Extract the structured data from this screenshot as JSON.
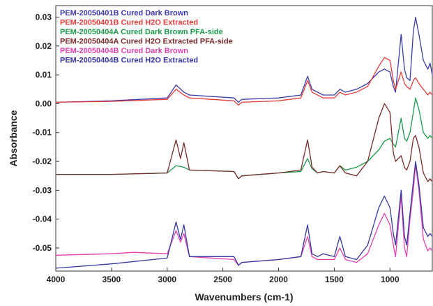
{
  "chart_data": {
    "type": "line",
    "title": "",
    "xlabel": "Wavenumbers (cm-1)",
    "ylabel": "Absorbance",
    "xlim": [
      4000,
      620
    ],
    "ylim": [
      -0.058,
      0.034
    ],
    "x_reversed": true,
    "x_ticks": [
      4000,
      3500,
      3000,
      2500,
      2000,
      1500,
      1000
    ],
    "x_tick_labels": [
      "4000",
      "3500",
      "3000",
      "2500",
      "2000",
      "1500",
      "1000"
    ],
    "y_ticks": [
      0.03,
      0.02,
      0.01,
      0.0,
      -0.01,
      -0.02,
      -0.03,
      -0.04,
      -0.05
    ],
    "y_tick_labels": [
      "0.03",
      "0.02",
      "0.01",
      "0.00",
      "-0.01",
      "-0.02",
      "-0.03",
      "-0.04",
      "-0.05"
    ],
    "grid": false,
    "legend_position": "top-left",
    "series": [
      {
        "name": "PEM-20050401B Cured Dark Brown",
        "color": "#3a3aa8",
        "points": [
          [
            4000,
            0.0005
          ],
          [
            3500,
            0.001
          ],
          [
            3000,
            0.002
          ],
          [
            2920,
            0.0065
          ],
          [
            2850,
            0.004
          ],
          [
            2800,
            0.003
          ],
          [
            2400,
            0.002
          ],
          [
            2360,
            0.0005
          ],
          [
            2330,
            0.0015
          ],
          [
            2000,
            0.002
          ],
          [
            1800,
            0.003
          ],
          [
            1740,
            0.0095
          ],
          [
            1700,
            0.005
          ],
          [
            1600,
            0.003
          ],
          [
            1500,
            0.003
          ],
          [
            1450,
            0.005
          ],
          [
            1400,
            0.004
          ],
          [
            1300,
            0.005
          ],
          [
            1200,
            0.007
          ],
          [
            1100,
            0.011
          ],
          [
            1050,
            0.012
          ],
          [
            1000,
            0.011
          ],
          [
            970,
            0.006
          ],
          [
            950,
            0.004
          ],
          [
            900,
            0.024
          ],
          [
            870,
            0.012
          ],
          [
            850,
            0.009
          ],
          [
            820,
            0.008
          ],
          [
            790,
            0.025
          ],
          [
            770,
            0.03
          ],
          [
            740,
            0.024
          ],
          [
            700,
            0.015
          ],
          [
            660,
            0.012
          ],
          [
            640,
            0.014
          ],
          [
            620,
            0.01
          ]
        ]
      },
      {
        "name": "PEM-20050401B Cured H2O Extracted",
        "color": "#e23b3b",
        "points": [
          [
            4000,
            0.0005
          ],
          [
            3500,
            0.0008
          ],
          [
            3000,
            0.0015
          ],
          [
            2920,
            0.005
          ],
          [
            2850,
            0.003
          ],
          [
            2800,
            0.002
          ],
          [
            2400,
            0.001
          ],
          [
            2360,
            -0.0005
          ],
          [
            2330,
            0.0005
          ],
          [
            2000,
            0.001
          ],
          [
            1800,
            0.002
          ],
          [
            1740,
            0.008
          ],
          [
            1700,
            0.004
          ],
          [
            1600,
            0.002
          ],
          [
            1500,
            0.002
          ],
          [
            1450,
            0.004
          ],
          [
            1400,
            0.003
          ],
          [
            1300,
            0.004
          ],
          [
            1200,
            0.006
          ],
          [
            1100,
            0.013
          ],
          [
            1050,
            0.016
          ],
          [
            1000,
            0.015
          ],
          [
            970,
            0.008
          ],
          [
            950,
            0.005
          ],
          [
            900,
            0.011
          ],
          [
            870,
            0.007
          ],
          [
            850,
            0.006
          ],
          [
            820,
            0.005
          ],
          [
            790,
            0.008
          ],
          [
            770,
            0.009
          ],
          [
            740,
            0.007
          ],
          [
            700,
            0.005
          ],
          [
            660,
            0.003
          ],
          [
            640,
            0.004
          ],
          [
            620,
            0.003
          ]
        ]
      },
      {
        "name": "PEM-20050404A Cured Dark Brown PFA-side",
        "color": "#1a9a4a",
        "points": [
          [
            4000,
            -0.0245
          ],
          [
            3500,
            -0.0245
          ],
          [
            3000,
            -0.024
          ],
          [
            2920,
            -0.0215
          ],
          [
            2850,
            -0.022
          ],
          [
            2800,
            -0.023
          ],
          [
            2400,
            -0.0235
          ],
          [
            2360,
            -0.026
          ],
          [
            2330,
            -0.025
          ],
          [
            2000,
            -0.024
          ],
          [
            1800,
            -0.0235
          ],
          [
            1740,
            -0.019
          ],
          [
            1700,
            -0.0225
          ],
          [
            1650,
            -0.024
          ],
          [
            1600,
            -0.0235
          ],
          [
            1500,
            -0.024
          ],
          [
            1450,
            -0.0215
          ],
          [
            1400,
            -0.023
          ],
          [
            1300,
            -0.022
          ],
          [
            1200,
            -0.02
          ],
          [
            1100,
            -0.016
          ],
          [
            1050,
            -0.013
          ],
          [
            1000,
            -0.012
          ],
          [
            970,
            -0.014
          ],
          [
            950,
            -0.015
          ],
          [
            900,
            -0.005
          ],
          [
            870,
            -0.012
          ],
          [
            850,
            -0.013
          ],
          [
            820,
            -0.01
          ],
          [
            790,
            -0.003
          ],
          [
            770,
            0.002
          ],
          [
            740,
            -0.002
          ],
          [
            700,
            -0.01
          ],
          [
            660,
            -0.012
          ],
          [
            640,
            -0.011
          ],
          [
            620,
            -0.012
          ]
        ]
      },
      {
        "name": "PEM-20050404A Cured H2O Extracted PFA-side",
        "color": "#7a2a2a",
        "points": [
          [
            4000,
            -0.0245
          ],
          [
            3500,
            -0.0245
          ],
          [
            3000,
            -0.024
          ],
          [
            2920,
            -0.0125
          ],
          [
            2880,
            -0.019
          ],
          [
            2850,
            -0.0135
          ],
          [
            2800,
            -0.023
          ],
          [
            2400,
            -0.0235
          ],
          [
            2360,
            -0.026
          ],
          [
            2330,
            -0.025
          ],
          [
            2000,
            -0.024
          ],
          [
            1800,
            -0.023
          ],
          [
            1740,
            -0.0125
          ],
          [
            1700,
            -0.022
          ],
          [
            1650,
            -0.024
          ],
          [
            1600,
            -0.0235
          ],
          [
            1500,
            -0.024
          ],
          [
            1450,
            -0.0215
          ],
          [
            1400,
            -0.024
          ],
          [
            1300,
            -0.025
          ],
          [
            1200,
            -0.02
          ],
          [
            1100,
            -0.005
          ],
          [
            1050,
            0.0
          ],
          [
            1000,
            -0.003
          ],
          [
            970,
            -0.017
          ],
          [
            950,
            -0.02
          ],
          [
            900,
            -0.018
          ],
          [
            870,
            -0.022
          ],
          [
            850,
            -0.023
          ],
          [
            820,
            -0.02
          ],
          [
            790,
            -0.012
          ],
          [
            770,
            -0.011
          ],
          [
            740,
            -0.015
          ],
          [
            700,
            -0.024
          ],
          [
            660,
            -0.027
          ],
          [
            640,
            -0.026
          ],
          [
            620,
            -0.027
          ]
        ]
      },
      {
        "name": "PEM-20050404B Cured Dark Brown",
        "color": "#e040b0",
        "points": [
          [
            4000,
            -0.0525
          ],
          [
            3500,
            -0.052
          ],
          [
            3300,
            -0.0515
          ],
          [
            3000,
            -0.052
          ],
          [
            2920,
            -0.044
          ],
          [
            2880,
            -0.048
          ],
          [
            2850,
            -0.045
          ],
          [
            2800,
            -0.053
          ],
          [
            2400,
            -0.054
          ],
          [
            2360,
            -0.056
          ],
          [
            2330,
            -0.055
          ],
          [
            2000,
            -0.054
          ],
          [
            1800,
            -0.053
          ],
          [
            1740,
            -0.046
          ],
          [
            1700,
            -0.053
          ],
          [
            1650,
            -0.054
          ],
          [
            1600,
            -0.054
          ],
          [
            1500,
            -0.054
          ],
          [
            1450,
            -0.05
          ],
          [
            1400,
            -0.054
          ],
          [
            1300,
            -0.055
          ],
          [
            1200,
            -0.052
          ],
          [
            1100,
            -0.042
          ],
          [
            1050,
            -0.038
          ],
          [
            1000,
            -0.042
          ],
          [
            970,
            -0.049
          ],
          [
            950,
            -0.053
          ],
          [
            900,
            -0.032
          ],
          [
            870,
            -0.05
          ],
          [
            850,
            -0.053
          ],
          [
            820,
            -0.04
          ],
          [
            790,
            -0.03
          ],
          [
            770,
            -0.021
          ],
          [
            740,
            -0.03
          ],
          [
            700,
            -0.047
          ],
          [
            660,
            -0.051
          ],
          [
            640,
            -0.05
          ],
          [
            620,
            -0.051
          ]
        ]
      },
      {
        "name": "PEM-20050404B Cured H2O Extracted",
        "color": "#3636a0",
        "points": [
          [
            4000,
            -0.057
          ],
          [
            3500,
            -0.0555
          ],
          [
            3000,
            -0.0535
          ],
          [
            2920,
            -0.041
          ],
          [
            2880,
            -0.047
          ],
          [
            2850,
            -0.042
          ],
          [
            2800,
            -0.053
          ],
          [
            2400,
            -0.053
          ],
          [
            2360,
            -0.056
          ],
          [
            2330,
            -0.055
          ],
          [
            2000,
            -0.054
          ],
          [
            1800,
            -0.053
          ],
          [
            1740,
            -0.042
          ],
          [
            1700,
            -0.052
          ],
          [
            1650,
            -0.053
          ],
          [
            1600,
            -0.052
          ],
          [
            1500,
            -0.053
          ],
          [
            1450,
            -0.046
          ],
          [
            1400,
            -0.053
          ],
          [
            1300,
            -0.054
          ],
          [
            1200,
            -0.049
          ],
          [
            1100,
            -0.036
          ],
          [
            1050,
            -0.032
          ],
          [
            1000,
            -0.036
          ],
          [
            970,
            -0.045
          ],
          [
            950,
            -0.049
          ],
          [
            900,
            -0.03
          ],
          [
            870,
            -0.046
          ],
          [
            850,
            -0.049
          ],
          [
            820,
            -0.038
          ],
          [
            790,
            -0.027
          ],
          [
            770,
            -0.02
          ],
          [
            740,
            -0.028
          ],
          [
            700,
            -0.043
          ],
          [
            660,
            -0.046
          ],
          [
            640,
            -0.045
          ],
          [
            620,
            -0.046
          ]
        ]
      }
    ]
  }
}
